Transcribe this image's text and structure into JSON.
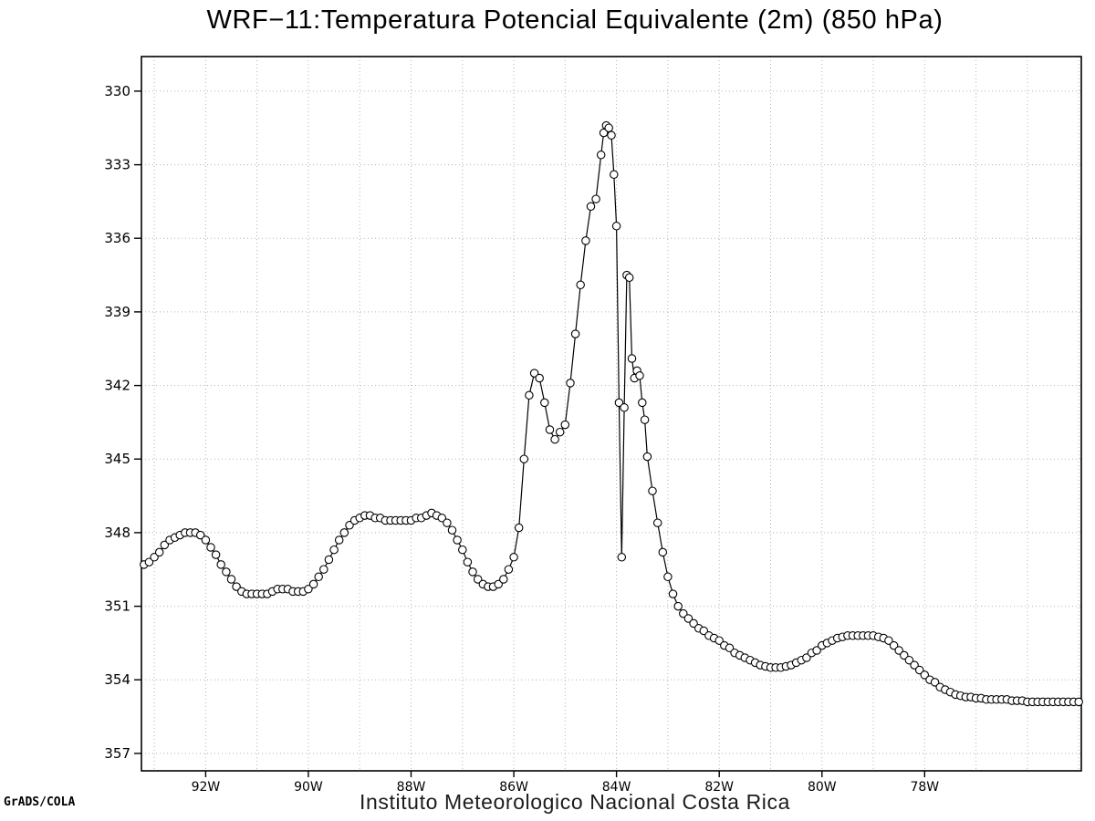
{
  "page": {
    "title": "WRF−11:Temperatura Potencial Equivalente (2m) (850 hPa)",
    "footer": "Instituto Meteorologico Nacional Costa Rica",
    "credit": "GrADS/COLA"
  },
  "colors": {
    "line": "#000000",
    "marker_stroke": "#000000",
    "marker_fill": "#ffffff",
    "grid": "#b3b3b3",
    "axis": "#000000",
    "tick_text": "#000000"
  },
  "chart_data": {
    "type": "line",
    "title": "WRF−11:Temperatura Potencial Equivalente (2m) (850 hPa)",
    "subtitle": "Instituto Meteorologico Nacional Costa Rica",
    "xlabel": "",
    "ylabel": "",
    "marker": "open-circle",
    "grid": "dotted",
    "x_axis": {
      "unit": "degrees west",
      "label_suffix": "W",
      "tick_values_w": [
        92,
        90,
        88,
        86,
        84,
        82,
        80,
        78
      ],
      "grid_step_deg": 1,
      "min_w": 93.25,
      "max_w": 74.95
    },
    "y_axis": {
      "ticks": [
        330,
        333,
        336,
        339,
        342,
        345,
        348,
        351,
        354,
        357
      ],
      "min": 328.59,
      "max": 357.71,
      "inverted_down": true
    },
    "points": [
      [
        93.2,
        349.3
      ],
      [
        93.1,
        349.2
      ],
      [
        93.0,
        349.0
      ],
      [
        92.9,
        348.8
      ],
      [
        92.8,
        348.5
      ],
      [
        92.7,
        348.3
      ],
      [
        92.6,
        348.2
      ],
      [
        92.5,
        348.1
      ],
      [
        92.4,
        348.0
      ],
      [
        92.3,
        348.0
      ],
      [
        92.2,
        348.0
      ],
      [
        92.1,
        348.1
      ],
      [
        92.0,
        348.3
      ],
      [
        91.9,
        348.6
      ],
      [
        91.8,
        348.9
      ],
      [
        91.7,
        349.3
      ],
      [
        91.6,
        349.6
      ],
      [
        91.5,
        349.9
      ],
      [
        91.4,
        350.2
      ],
      [
        91.3,
        350.4
      ],
      [
        91.2,
        350.5
      ],
      [
        91.1,
        350.5
      ],
      [
        91.0,
        350.5
      ],
      [
        90.9,
        350.5
      ],
      [
        90.8,
        350.5
      ],
      [
        90.7,
        350.4
      ],
      [
        90.6,
        350.3
      ],
      [
        90.5,
        350.3
      ],
      [
        90.4,
        350.3
      ],
      [
        90.3,
        350.4
      ],
      [
        90.2,
        350.4
      ],
      [
        90.1,
        350.4
      ],
      [
        90.0,
        350.3
      ],
      [
        89.9,
        350.1
      ],
      [
        89.8,
        349.8
      ],
      [
        89.7,
        349.5
      ],
      [
        89.6,
        349.1
      ],
      [
        89.5,
        348.7
      ],
      [
        89.4,
        348.3
      ],
      [
        89.3,
        348.0
      ],
      [
        89.2,
        347.7
      ],
      [
        89.1,
        347.5
      ],
      [
        89.0,
        347.4
      ],
      [
        88.9,
        347.3
      ],
      [
        88.8,
        347.3
      ],
      [
        88.7,
        347.4
      ],
      [
        88.6,
        347.4
      ],
      [
        88.5,
        347.5
      ],
      [
        88.4,
        347.5
      ],
      [
        88.3,
        347.5
      ],
      [
        88.2,
        347.5
      ],
      [
        88.1,
        347.5
      ],
      [
        88.0,
        347.5
      ],
      [
        87.9,
        347.4
      ],
      [
        87.8,
        347.4
      ],
      [
        87.7,
        347.3
      ],
      [
        87.6,
        347.2
      ],
      [
        87.5,
        347.3
      ],
      [
        87.4,
        347.4
      ],
      [
        87.3,
        347.6
      ],
      [
        87.2,
        347.9
      ],
      [
        87.1,
        348.3
      ],
      [
        87.0,
        348.7
      ],
      [
        86.9,
        349.2
      ],
      [
        86.8,
        349.6
      ],
      [
        86.7,
        349.9
      ],
      [
        86.6,
        350.1
      ],
      [
        86.5,
        350.2
      ],
      [
        86.4,
        350.2
      ],
      [
        86.3,
        350.1
      ],
      [
        86.2,
        349.9
      ],
      [
        86.1,
        349.5
      ],
      [
        86.0,
        349.0
      ],
      [
        85.9,
        347.8
      ],
      [
        85.8,
        345.0
      ],
      [
        85.7,
        342.4
      ],
      [
        85.6,
        341.5
      ],
      [
        85.5,
        341.7
      ],
      [
        85.4,
        342.7
      ],
      [
        85.3,
        343.8
      ],
      [
        85.2,
        344.2
      ],
      [
        85.1,
        343.9
      ],
      [
        85.0,
        343.6
      ],
      [
        84.9,
        341.9
      ],
      [
        84.8,
        339.9
      ],
      [
        84.7,
        337.9
      ],
      [
        84.6,
        336.1
      ],
      [
        84.5,
        334.7
      ],
      [
        84.4,
        334.4
      ],
      [
        84.3,
        332.6
      ],
      [
        84.25,
        331.7
      ],
      [
        84.2,
        331.4
      ],
      [
        84.15,
        331.5
      ],
      [
        84.1,
        331.8
      ],
      [
        84.05,
        333.4
      ],
      [
        84.0,
        335.5
      ],
      [
        83.95,
        342.7
      ],
      [
        83.9,
        349.0
      ],
      [
        83.85,
        342.9
      ],
      [
        83.8,
        337.5
      ],
      [
        83.75,
        337.6
      ],
      [
        83.7,
        340.9
      ],
      [
        83.65,
        341.7
      ],
      [
        83.6,
        341.4
      ],
      [
        83.55,
        341.6
      ],
      [
        83.5,
        342.7
      ],
      [
        83.45,
        343.4
      ],
      [
        83.4,
        344.9
      ],
      [
        83.3,
        346.3
      ],
      [
        83.2,
        347.6
      ],
      [
        83.1,
        348.8
      ],
      [
        83.0,
        349.8
      ],
      [
        82.9,
        350.5
      ],
      [
        82.8,
        351.0
      ],
      [
        82.7,
        351.3
      ],
      [
        82.6,
        351.5
      ],
      [
        82.5,
        351.7
      ],
      [
        82.4,
        351.9
      ],
      [
        82.3,
        352.0
      ],
      [
        82.2,
        352.2
      ],
      [
        82.1,
        352.3
      ],
      [
        82.0,
        352.4
      ],
      [
        81.9,
        352.6
      ],
      [
        81.8,
        352.7
      ],
      [
        81.7,
        352.9
      ],
      [
        81.6,
        353.0
      ],
      [
        81.5,
        353.1
      ],
      [
        81.4,
        353.2
      ],
      [
        81.3,
        353.3
      ],
      [
        81.2,
        353.4
      ],
      [
        81.1,
        353.45
      ],
      [
        81.0,
        353.5
      ],
      [
        80.9,
        353.5
      ],
      [
        80.8,
        353.5
      ],
      [
        80.7,
        353.45
      ],
      [
        80.6,
        353.4
      ],
      [
        80.5,
        353.3
      ],
      [
        80.4,
        353.2
      ],
      [
        80.3,
        353.1
      ],
      [
        80.2,
        352.9
      ],
      [
        80.1,
        352.8
      ],
      [
        80.0,
        352.6
      ],
      [
        79.9,
        352.5
      ],
      [
        79.8,
        352.4
      ],
      [
        79.7,
        352.3
      ],
      [
        79.6,
        352.25
      ],
      [
        79.5,
        352.2
      ],
      [
        79.4,
        352.2
      ],
      [
        79.3,
        352.2
      ],
      [
        79.2,
        352.2
      ],
      [
        79.1,
        352.2
      ],
      [
        79.0,
        352.2
      ],
      [
        78.9,
        352.25
      ],
      [
        78.8,
        352.3
      ],
      [
        78.7,
        352.4
      ],
      [
        78.6,
        352.6
      ],
      [
        78.5,
        352.8
      ],
      [
        78.4,
        353.0
      ],
      [
        78.3,
        353.2
      ],
      [
        78.2,
        353.4
      ],
      [
        78.1,
        353.6
      ],
      [
        78.0,
        353.8
      ],
      [
        77.9,
        354.0
      ],
      [
        77.8,
        354.1
      ],
      [
        77.7,
        354.3
      ],
      [
        77.6,
        354.4
      ],
      [
        77.5,
        354.5
      ],
      [
        77.4,
        354.6
      ],
      [
        77.3,
        354.65
      ],
      [
        77.2,
        354.7
      ],
      [
        77.1,
        354.7
      ],
      [
        77.0,
        354.75
      ],
      [
        76.9,
        354.75
      ],
      [
        76.8,
        354.8
      ],
      [
        76.7,
        354.8
      ],
      [
        76.6,
        354.8
      ],
      [
        76.5,
        354.8
      ],
      [
        76.4,
        354.8
      ],
      [
        76.3,
        354.85
      ],
      [
        76.2,
        354.85
      ],
      [
        76.1,
        354.85
      ],
      [
        76.0,
        354.9
      ],
      [
        75.9,
        354.9
      ],
      [
        75.8,
        354.9
      ],
      [
        75.7,
        354.9
      ],
      [
        75.6,
        354.9
      ],
      [
        75.5,
        354.9
      ],
      [
        75.4,
        354.9
      ],
      [
        75.3,
        354.9
      ],
      [
        75.2,
        354.9
      ],
      [
        75.1,
        354.9
      ],
      [
        75.0,
        354.9
      ]
    ]
  }
}
